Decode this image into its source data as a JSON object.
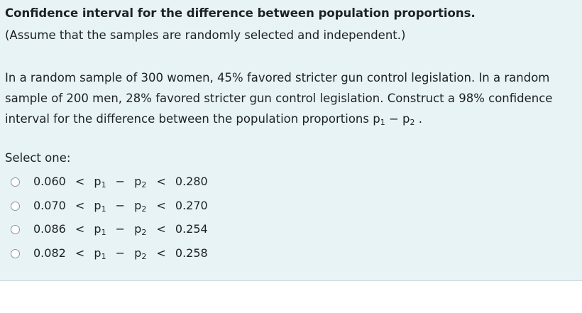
{
  "question": {
    "title": "Confidence interval for the difference between population proportions.",
    "subtitle": "(Assume that the samples are randomly selected and independent.)",
    "body_line1": "In a random sample of 300 women, 45% favored stricter gun control legislation. In a random",
    "body_line2": "sample of 200 men, 28% favored stricter gun control legislation. Construct a 98% confidence",
    "body_line3_prefix": "interval for the difference between the population proportions p",
    "body_line3_sub1": "1",
    "body_line3_mid": " − p",
    "body_line3_sub2": "2",
    "body_line3_suffix": " ."
  },
  "select_label": "Select one:",
  "options": [
    {
      "low": "0.060",
      "lt1": "<",
      "p1": "p",
      "s1": "1",
      "minus": "−",
      "p2": "p",
      "s2": "2",
      "lt2": "<",
      "high": "0.280"
    },
    {
      "low": "0.070",
      "lt1": "<",
      "p1": "p",
      "s1": "1",
      "minus": "−",
      "p2": "p",
      "s2": "2",
      "lt2": "<",
      "high": "0.270"
    },
    {
      "low": "0.086",
      "lt1": "<",
      "p1": "p",
      "s1": "1",
      "minus": "−",
      "p2": "p",
      "s2": "2",
      "lt2": "<",
      "high": "0.254"
    },
    {
      "low": "0.082",
      "lt1": "<",
      "p1": "p",
      "s1": "1",
      "minus": "−",
      "p2": "p",
      "s2": "2",
      "lt2": "<",
      "high": "0.258"
    }
  ]
}
